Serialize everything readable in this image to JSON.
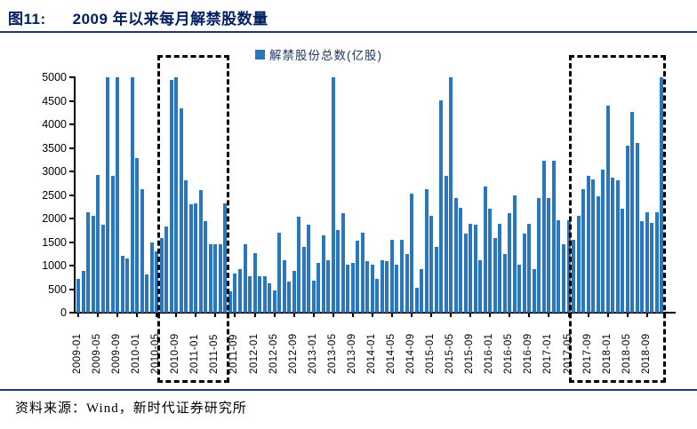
{
  "figure": {
    "label": "图11:",
    "title": "2009 年以来每月解禁股数量",
    "source": "资料来源：Wind，新时代证券研究所"
  },
  "legend": {
    "label": "解禁股份总数(亿股)"
  },
  "colors": {
    "bar": "#2977BD",
    "title_text": "#002060",
    "rule": "#1F3864",
    "axis": "#000000",
    "highlight_box": "#000000"
  },
  "chart_data": {
    "type": "bar",
    "title": "2009 年以来每月解禁股数量",
    "legend_entries": [
      "解禁股份总数(亿股)"
    ],
    "xlabel": "",
    "ylabel": "",
    "ylim": [
      0,
      5000
    ],
    "y_ticks": [
      0,
      500,
      1000,
      1500,
      2000,
      2500,
      3000,
      3500,
      4000,
      4500,
      5000
    ],
    "xtick_every": 4,
    "grid": false,
    "legend_position": "top-center",
    "months": [
      "2009-01",
      "2009-02",
      "2009-03",
      "2009-04",
      "2009-05",
      "2009-06",
      "2009-07",
      "2009-08",
      "2009-09",
      "2009-10",
      "2009-11",
      "2009-12",
      "2010-01",
      "2010-02",
      "2010-03",
      "2010-04",
      "2010-05",
      "2010-06",
      "2010-07",
      "2010-08",
      "2010-09",
      "2010-10",
      "2010-11",
      "2010-12",
      "2011-01",
      "2011-02",
      "2011-03",
      "2011-04",
      "2011-05",
      "2011-06",
      "2011-07",
      "2011-08",
      "2011-09",
      "2011-10",
      "2011-11",
      "2011-12",
      "2012-01",
      "2012-02",
      "2012-03",
      "2012-04",
      "2012-05",
      "2012-06",
      "2012-07",
      "2012-08",
      "2012-09",
      "2012-10",
      "2012-11",
      "2012-12",
      "2013-01",
      "2013-02",
      "2013-03",
      "2013-04",
      "2013-05",
      "2013-06",
      "2013-07",
      "2013-08",
      "2013-09",
      "2013-10",
      "2013-11",
      "2013-12",
      "2014-01",
      "2014-02",
      "2014-03",
      "2014-04",
      "2014-05",
      "2014-06",
      "2014-07",
      "2014-08",
      "2014-09",
      "2014-10",
      "2014-11",
      "2014-12",
      "2015-01",
      "2015-02",
      "2015-03",
      "2015-04",
      "2015-05",
      "2015-06",
      "2015-07",
      "2015-08",
      "2015-09",
      "2015-10",
      "2015-11",
      "2015-12",
      "2016-01",
      "2016-02",
      "2016-03",
      "2016-04",
      "2016-05",
      "2016-06",
      "2016-07",
      "2016-08",
      "2016-09",
      "2016-10",
      "2016-11",
      "2016-12",
      "2017-01",
      "2017-02",
      "2017-03",
      "2017-04",
      "2017-05",
      "2017-06",
      "2017-07",
      "2017-08",
      "2017-09",
      "2017-10",
      "2017-11",
      "2017-12",
      "2018-01",
      "2018-02",
      "2018-03",
      "2018-04",
      "2018-05",
      "2018-06",
      "2018-07",
      "2018-08",
      "2018-09",
      "2018-10",
      "2018-11",
      "2018-12"
    ],
    "values": [
      710,
      885,
      2125,
      2050,
      2930,
      1860,
      5000,
      2910,
      5000,
      1200,
      1150,
      5000,
      3280,
      2630,
      820,
      1500,
      1300,
      1580,
      1830,
      4950,
      5000,
      4345,
      2805,
      2300,
      2320,
      2600,
      1950,
      1450,
      1450,
      1450,
      2315,
      447,
      824,
      918,
      1453,
      780,
      1264,
      780,
      780,
      616,
      478,
      1704,
      1107,
      667,
      887,
      2031,
      1390,
      1874,
      679,
      1056,
      1641,
      1107,
      5000,
      1748,
      2113,
      1025,
      1056,
      1528,
      1704,
      1088,
      1013,
      711,
      1107,
      1100,
      1550,
      1013,
      1547,
      1245,
      2535,
      522,
      918,
      2629,
      2050,
      1390,
      4515,
      2912,
      5000,
      2428,
      2220,
      1673,
      1893,
      1874,
      1107,
      2680,
      2210,
      1580,
      1890,
      1245,
      2110,
      2490,
      1010,
      1685,
      1893,
      924,
      2440,
      3227,
      2436,
      3227,
      1956,
      1453,
      1956,
      1547,
      2051,
      2629,
      2900,
      2837,
      2472,
      3038,
      4390,
      2868,
      2805,
      2207,
      3541,
      4264,
      3604,
      1937,
      2126,
      1906,
      2126,
      5000
    ],
    "highlight_boxes": [
      {
        "from": "2010-06",
        "to": "2011-07"
      },
      {
        "from": "2017-06",
        "to": "2018-12"
      }
    ]
  }
}
